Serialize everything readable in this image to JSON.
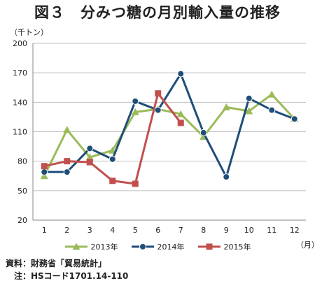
{
  "title": "図３　分みつ糖の月別輸入量の推移",
  "y_unit": "（千トン）",
  "x_unit": "（月）",
  "chart_data": {
    "type": "line",
    "categories": [
      "1",
      "2",
      "3",
      "4",
      "5",
      "6",
      "7",
      "8",
      "9",
      "10",
      "11",
      "12"
    ],
    "ylim": [
      20,
      200
    ],
    "yticks": [
      20,
      50,
      80,
      110,
      140,
      170,
      200
    ],
    "grid": true,
    "legend_position": "bottom",
    "series": [
      {
        "name": "2013年",
        "color": "#9bbb59",
        "marker": "triangle",
        "values": [
          65,
          112,
          84,
          91,
          130,
          133,
          128,
          105,
          135,
          131,
          148,
          123
        ]
      },
      {
        "name": "2014年",
        "color": "#1f4e79",
        "marker": "circle",
        "values": [
          69,
          69,
          93,
          82,
          141,
          132,
          169,
          109,
          64,
          144,
          132,
          123
        ]
      },
      {
        "name": "2015年",
        "color": "#c0504d",
        "marker": "square",
        "values": [
          75,
          80,
          79,
          60,
          57,
          149,
          119,
          null,
          null,
          null,
          null,
          null
        ]
      }
    ]
  },
  "notes": {
    "source": "資料：財務省「貿易統計」",
    "note": "　注：HSコード1701.14-110"
  }
}
